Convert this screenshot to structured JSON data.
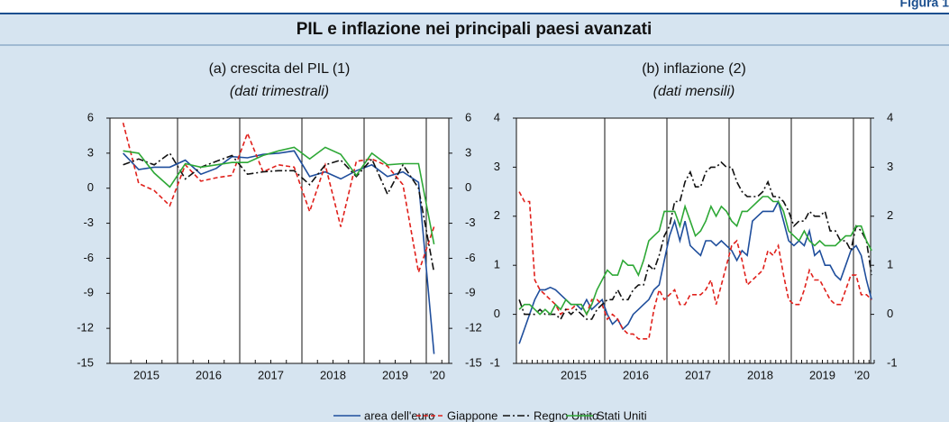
{
  "figure_label": "Figura 1",
  "title": "PIL e inflazione nei principali paesi avanzati",
  "chart_data": [
    {
      "type": "line",
      "title": "(a) crescita del PIL (1)",
      "subtitle": "(dati trimestrali)",
      "frequency": "quarterly",
      "xlabels": [
        "2015",
        "2016",
        "2017",
        "2018",
        "2019",
        "'20"
      ],
      "ylim": [
        -15,
        6
      ],
      "yticks": [
        -15,
        -12,
        -9,
        -6,
        -3,
        0,
        3,
        6
      ],
      "series": [
        {
          "name": "area dell'euro",
          "color": "#1f4e9c",
          "style": "solid",
          "values": [
            3.0,
            1.6,
            1.8,
            1.8,
            2.4,
            1.2,
            1.7,
            2.7,
            2.6,
            2.9,
            3.0,
            3.2,
            1.0,
            1.4,
            0.8,
            1.5,
            2.0,
            1.0,
            1.4,
            0.5,
            -14.2
          ]
        },
        {
          "name": "Giappone",
          "color": "#e0201b",
          "style": "dashed",
          "values": [
            5.6,
            0.4,
            -0.2,
            -1.5,
            2.0,
            0.6,
            0.9,
            1.1,
            4.7,
            1.4,
            2.0,
            1.8,
            -2.0,
            2.0,
            -3.3,
            2.3,
            2.5,
            1.9,
            0.3,
            -7.2,
            -3.3
          ]
        },
        {
          "name": "Regno Unito",
          "color": "#111111",
          "style": "dashdot",
          "values": [
            2.0,
            2.5,
            2.0,
            3.0,
            0.8,
            1.8,
            2.3,
            2.8,
            1.2,
            1.4,
            1.5,
            1.5,
            0.3,
            2.0,
            2.4,
            1.0,
            2.5,
            -0.5,
            2.0,
            0.0,
            -7.2
          ]
        },
        {
          "name": "Stati Uniti",
          "color": "#2ea836",
          "style": "solid",
          "values": [
            3.2,
            3.0,
            1.3,
            0.1,
            2.1,
            1.8,
            2.0,
            2.2,
            2.2,
            2.8,
            3.2,
            3.5,
            2.5,
            3.5,
            2.9,
            1.1,
            3.0,
            2.0,
            2.1,
            2.1,
            -4.8
          ]
        }
      ]
    },
    {
      "type": "line",
      "title": "(b) inflazione (2)",
      "subtitle": "(dati mensili)",
      "frequency": "monthly",
      "xlabels": [
        "2015",
        "2016",
        "2017",
        "2018",
        "2019",
        "'20"
      ],
      "ylim": [
        -1,
        4
      ],
      "yticks": [
        -1,
        0,
        1,
        2,
        3,
        4
      ],
      "series": [
        {
          "color": "#1f4e9c",
          "style": "solid",
          "values": [
            -0.6,
            -0.3,
            0.0,
            0.3,
            0.5,
            0.5,
            0.55,
            0.5,
            0.4,
            0.3,
            0.2,
            0.2,
            0.1,
            0.3,
            0.1,
            0.2,
            0.3,
            0.0,
            -0.2,
            -0.1,
            -0.3,
            -0.2,
            0.0,
            0.1,
            0.2,
            0.3,
            0.5,
            0.6,
            1.1,
            1.6,
            1.9,
            1.5,
            1.9,
            1.4,
            1.3,
            1.2,
            1.5,
            1.5,
            1.4,
            1.5,
            1.4,
            1.3,
            1.1,
            1.3,
            1.2,
            1.9,
            2.0,
            2.1,
            2.1,
            2.1,
            2.3,
            1.9,
            1.5,
            1.4,
            1.5,
            1.4,
            1.7,
            1.2,
            1.3,
            1.0,
            1.0,
            0.8,
            0.7,
            1.0,
            1.3,
            1.4,
            1.2,
            0.7,
            0.3
          ]
        },
        {
          "color": "#e0201b",
          "style": "dashed",
          "values": [
            2.5,
            2.3,
            2.3,
            0.7,
            0.5,
            0.4,
            0.3,
            0.2,
            0.0,
            0.1,
            0.1,
            0.2,
            0.2,
            0.0,
            0.3,
            0.3,
            0.2,
            -0.1,
            0.0,
            -0.1,
            -0.3,
            -0.4,
            -0.4,
            -0.5,
            -0.5,
            -0.5,
            0.1,
            0.5,
            0.3,
            0.4,
            0.5,
            0.2,
            0.2,
            0.4,
            0.4,
            0.4,
            0.5,
            0.7,
            0.2,
            0.6,
            1.0,
            1.4,
            1.5,
            1.1,
            0.6,
            0.7,
            0.8,
            0.9,
            1.3,
            1.2,
            1.4,
            0.8,
            0.3,
            0.2,
            0.2,
            0.5,
            0.9,
            0.7,
            0.7,
            0.5,
            0.3,
            0.2,
            0.2,
            0.5,
            0.8,
            0.8,
            0.4,
            0.4,
            0.3
          ]
        },
        {
          "color": "#111111",
          "style": "dashdot",
          "values": [
            0.3,
            0.0,
            0.0,
            0.0,
            0.1,
            0.0,
            0.0,
            0.0,
            -0.1,
            0.1,
            0.0,
            0.1,
            0.0,
            -0.1,
            -0.1,
            0.1,
            0.2,
            0.3,
            0.3,
            0.5,
            0.3,
            0.3,
            0.5,
            0.6,
            0.6,
            1.0,
            0.9,
            1.2,
            1.6,
            1.8,
            2.3,
            2.3,
            2.7,
            2.9,
            2.6,
            2.6,
            2.9,
            3.0,
            3.0,
            3.1,
            3.0,
            3.0,
            2.7,
            2.5,
            2.4,
            2.4,
            2.4,
            2.5,
            2.7,
            2.4,
            2.4,
            2.3,
            2.1,
            1.8,
            1.9,
            1.9,
            2.1,
            2.0,
            2.0,
            2.1,
            1.7,
            1.7,
            1.5,
            1.5,
            1.3,
            1.8,
            1.7,
            1.5,
            0.8
          ]
        },
        {
          "color": "#2ea836",
          "style": "solid",
          "values": [
            0.1,
            0.2,
            0.2,
            0.1,
            0.0,
            0.1,
            0.0,
            0.2,
            0.1,
            0.3,
            0.2,
            0.2,
            0.2,
            0.0,
            0.2,
            0.5,
            0.7,
            0.9,
            0.8,
            0.8,
            1.1,
            1.0,
            1.0,
            0.8,
            1.1,
            1.5,
            1.6,
            1.7,
            2.1,
            2.1,
            2.1,
            1.8,
            2.2,
            1.9,
            1.6,
            1.7,
            1.9,
            2.2,
            2.0,
            2.2,
            2.1,
            1.9,
            1.8,
            2.1,
            2.1,
            2.2,
            2.3,
            2.4,
            2.4,
            2.3,
            2.3,
            2.1,
            1.7,
            1.6,
            1.5,
            1.7,
            1.5,
            1.4,
            1.5,
            1.4,
            1.4,
            1.4,
            1.5,
            1.6,
            1.6,
            1.8,
            1.8,
            1.5,
            1.3
          ]
        }
      ]
    }
  ]
}
